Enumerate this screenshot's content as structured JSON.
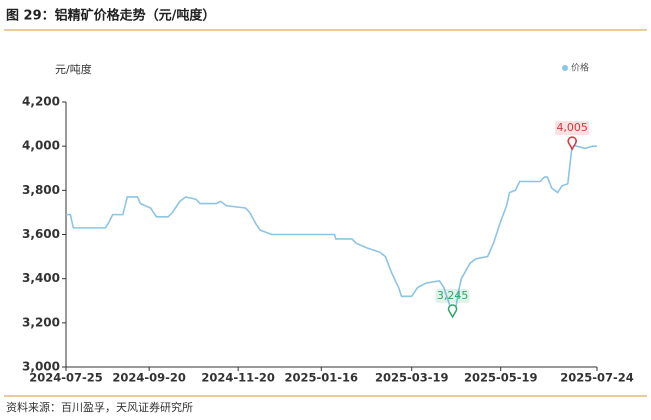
{
  "header": {
    "title": "图 29：铝精矿价格走势（元/吨度）"
  },
  "chart_data": {
    "type": "line",
    "y_axis_label": "元/吨度",
    "legend_position": "top-right",
    "x": [
      "2024-07-25",
      "2024-07-28",
      "2024-07-30",
      "2024-08-21",
      "2024-08-23",
      "2024-08-26",
      "2024-09-02",
      "2024-09-05",
      "2024-09-12",
      "2024-09-14",
      "2024-09-21",
      "2024-09-25",
      "2024-10-03",
      "2024-10-06",
      "2024-10-08",
      "2024-10-11",
      "2024-10-15",
      "2024-10-22",
      "2024-10-25",
      "2024-11-05",
      "2024-11-08",
      "2024-11-12",
      "2024-11-25",
      "2024-11-28",
      "2024-12-02",
      "2024-12-05",
      "2024-12-09",
      "2024-12-13",
      "2025-01-25",
      "2025-01-26",
      "2025-02-06",
      "2025-02-09",
      "2025-02-16",
      "2025-02-25",
      "2025-03-01",
      "2025-03-05",
      "2025-03-10",
      "2025-03-12",
      "2025-03-19",
      "2025-03-23",
      "2025-03-29",
      "2025-04-07",
      "2025-04-10",
      "2025-04-13",
      "2025-04-16",
      "2025-04-18",
      "2025-04-20",
      "2025-04-22",
      "2025-04-28",
      "2025-05-02",
      "2025-05-10",
      "2025-05-14",
      "2025-05-19",
      "2025-05-23",
      "2025-05-25",
      "2025-05-29",
      "2025-06-01",
      "2025-06-15",
      "2025-06-18",
      "2025-06-20",
      "2025-06-23",
      "2025-06-27",
      "2025-06-30",
      "2025-07-04",
      "2025-07-07",
      "2025-07-10",
      "2025-07-16",
      "2025-07-21",
      "2025-07-24"
    ],
    "series": [
      {
        "name": "价格",
        "color": "#8cc4e6",
        "values": [
          3690,
          3690,
          3630,
          3630,
          3650,
          3690,
          3690,
          3770,
          3770,
          3740,
          3720,
          3680,
          3680,
          3700,
          3720,
          3750,
          3770,
          3760,
          3740,
          3740,
          3750,
          3730,
          3720,
          3700,
          3650,
          3620,
          3610,
          3600,
          3600,
          3580,
          3580,
          3560,
          3540,
          3520,
          3500,
          3430,
          3360,
          3320,
          3320,
          3360,
          3380,
          3390,
          3360,
          3300,
          3245,
          3260,
          3340,
          3400,
          3470,
          3490,
          3500,
          3560,
          3660,
          3730,
          3790,
          3800,
          3840,
          3840,
          3860,
          3860,
          3810,
          3790,
          3820,
          3830,
          4005,
          4000,
          3990,
          4000,
          4000
        ]
      }
    ],
    "annotations": [
      {
        "label": "4,005",
        "value": 4005,
        "x": "2025-07-07",
        "color": "#d9363e"
      },
      {
        "label": "3,245",
        "value": 3245,
        "x": "2025-04-16",
        "color": "#2ea76a"
      }
    ],
    "xlim": [
      "2024-07-25",
      "2025-07-24"
    ],
    "xticks": [
      "2024-07-25",
      "2024-09-20",
      "2024-11-20",
      "2025-01-16",
      "2025-03-19",
      "2025-05-19",
      "2025-07-24"
    ],
    "ylim": [
      3000,
      4200
    ],
    "yticks": [
      {
        "value": 3000,
        "label": "3,000"
      },
      {
        "value": 3200,
        "label": "3,200"
      },
      {
        "value": 3400,
        "label": "3,400"
      },
      {
        "value": 3600,
        "label": "3,600"
      },
      {
        "value": 3800,
        "label": "3,800"
      },
      {
        "value": 4000,
        "label": "4,000"
      },
      {
        "value": 4200,
        "label": "4,200"
      }
    ],
    "grid": false
  },
  "footer": {
    "source": "资料来源：百川盈孚，天风证券研究所"
  }
}
